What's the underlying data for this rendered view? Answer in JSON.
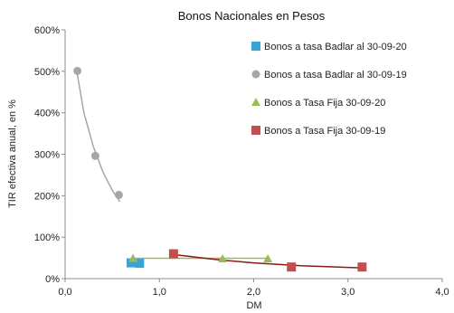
{
  "chart_data": {
    "type": "scatter",
    "title": "Bonos Nacionales en Pesos",
    "xlabel": "DM",
    "ylabel": "TIR efectiva anual, en %",
    "xlim": [
      0,
      4
    ],
    "ylim": [
      0,
      600
    ],
    "x_ticks": [
      "0,0",
      "1,0",
      "2,0",
      "3,0",
      "4,0"
    ],
    "y_ticks": [
      "0%",
      "100%",
      "200%",
      "300%",
      "400%",
      "500%",
      "600%"
    ],
    "grid": false,
    "legend_position": "right",
    "series": [
      {
        "name": "Bonos a tasa Badlar al 30-09-20",
        "marker": "square",
        "color": "#3aa3d6",
        "points": [
          {
            "x": 0.7,
            "y": 38
          },
          {
            "x": 0.79,
            "y": 37
          }
        ],
        "trend": []
      },
      {
        "name": "Bonos a tasa Badlar al 30-09-19",
        "marker": "circle",
        "color": "#a6a6a6",
        "points": [
          {
            "x": 0.13,
            "y": 501
          },
          {
            "x": 0.32,
            "y": 296
          },
          {
            "x": 0.57,
            "y": 202
          }
        ],
        "trend": [
          {
            "x": 0.12,
            "y": 505
          },
          {
            "x": 0.2,
            "y": 400
          },
          {
            "x": 0.3,
            "y": 318
          },
          {
            "x": 0.4,
            "y": 258
          },
          {
            "x": 0.5,
            "y": 213
          },
          {
            "x": 0.58,
            "y": 186
          }
        ]
      },
      {
        "name": "Bonos a Tasa Fija 30-09-20",
        "marker": "triangle",
        "color": "#9bbb59",
        "points": [
          {
            "x": 0.72,
            "y": 49
          },
          {
            "x": 1.67,
            "y": 48
          },
          {
            "x": 2.15,
            "y": 48
          }
        ],
        "trend": [
          {
            "x": 0.7,
            "y": 49
          },
          {
            "x": 2.15,
            "y": 49
          }
        ]
      },
      {
        "name": "Bonos a Tasa Fija 30-09-19",
        "marker": "square",
        "color": "#c0504d",
        "points": [
          {
            "x": 1.15,
            "y": 60
          },
          {
            "x": 2.4,
            "y": 28
          },
          {
            "x": 3.15,
            "y": 28
          }
        ],
        "trend": [
          {
            "x": 1.15,
            "y": 58
          },
          {
            "x": 1.6,
            "y": 46
          },
          {
            "x": 2.0,
            "y": 38
          },
          {
            "x": 2.5,
            "y": 31
          },
          {
            "x": 3.15,
            "y": 26
          }
        ],
        "trend_color": "#8b1a1a"
      }
    ]
  }
}
